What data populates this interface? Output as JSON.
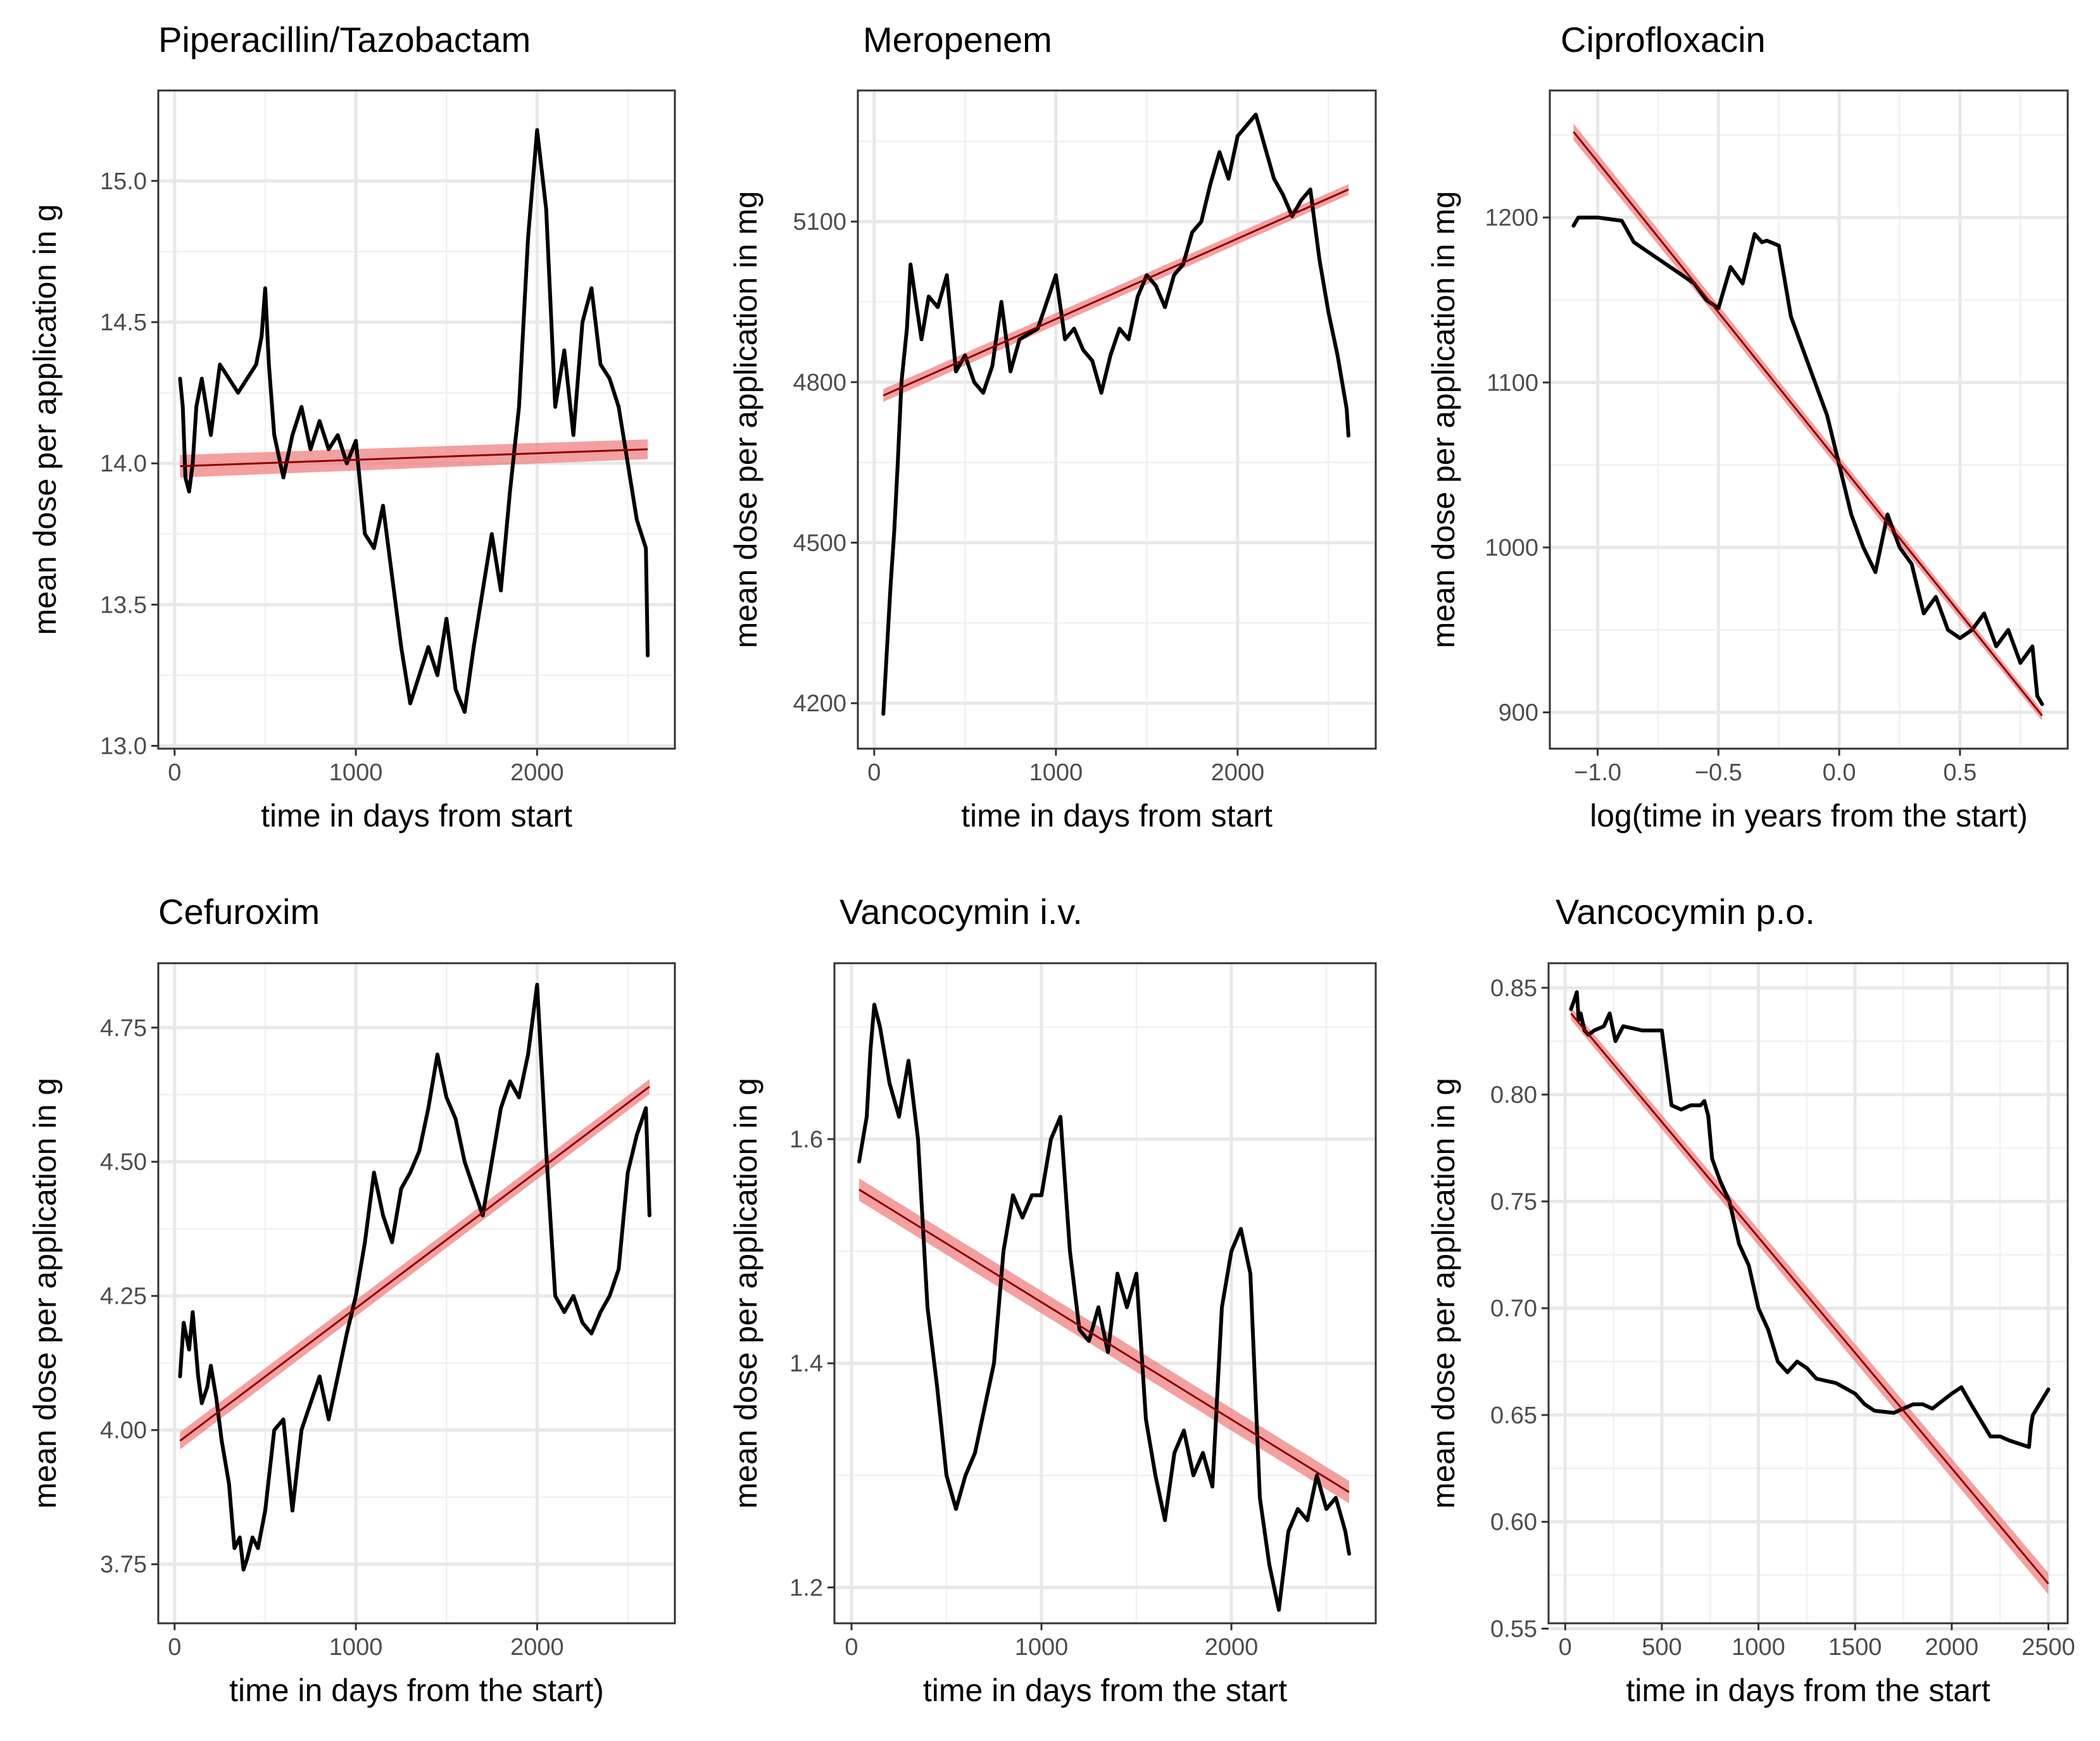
{
  "figure": {
    "background": "#ffffff",
    "colors": {
      "series": "#000000",
      "trend": "#8b0000",
      "band": "#f08080",
      "grid": "#ebebeb",
      "frame": "#333333"
    }
  },
  "chart_data": [
    {
      "type": "line",
      "title": "Piperacillin/Tazobactam",
      "xlabel": "time in days from start",
      "ylabel": "mean dose per application in g",
      "xlim": [
        -90,
        2760
      ],
      "ylim": [
        12.99,
        15.32
      ],
      "xticks": [
        0,
        1000,
        2000
      ],
      "xtick_labels": [
        "0",
        "1000",
        "2000"
      ],
      "xminor": [
        500,
        1500,
        2500
      ],
      "yticks": [
        13.0,
        13.5,
        14.0,
        14.5,
        15.0
      ],
      "ytick_labels": [
        "13.0",
        "13.5",
        "14.0",
        "14.5",
        "15.0"
      ],
      "yminor": [
        13.25,
        13.75,
        14.25,
        14.75
      ],
      "series": [
        {
          "name": "mean dose",
          "x": [
            30,
            45,
            60,
            80,
            100,
            120,
            150,
            200,
            250,
            300,
            350,
            400,
            450,
            480,
            500,
            520,
            550,
            600,
            650,
            700,
            750,
            800,
            850,
            900,
            950,
            1000,
            1050,
            1100,
            1150,
            1200,
            1250,
            1300,
            1350,
            1400,
            1450,
            1500,
            1550,
            1600,
            1650,
            1700,
            1750,
            1800,
            1850,
            1900,
            1950,
            2000,
            2050,
            2100,
            2150,
            2200,
            2250,
            2300,
            2350,
            2400,
            2450,
            2500,
            2550,
            2600,
            2610
          ],
          "y": [
            14.3,
            14.2,
            13.95,
            13.9,
            14.0,
            14.2,
            14.3,
            14.1,
            14.35,
            14.3,
            14.25,
            14.3,
            14.35,
            14.45,
            14.62,
            14.35,
            14.1,
            13.95,
            14.1,
            14.2,
            14.05,
            14.15,
            14.05,
            14.1,
            14.0,
            14.08,
            13.75,
            13.7,
            13.85,
            13.6,
            13.35,
            13.15,
            13.25,
            13.35,
            13.25,
            13.45,
            13.2,
            13.12,
            13.35,
            13.55,
            13.75,
            13.55,
            13.9,
            14.2,
            14.8,
            15.18,
            14.9,
            14.2,
            14.4,
            14.1,
            14.5,
            14.62,
            14.35,
            14.3,
            14.2,
            14.0,
            13.8,
            13.7,
            13.32
          ]
        }
      ],
      "trend": {
        "x": [
          30,
          2610
        ],
        "y": [
          13.99,
          14.05
        ],
        "band_halfwidth": [
          0.04,
          0.035
        ]
      }
    },
    {
      "type": "line",
      "title": "Meropenem",
      "xlabel": "time in days from start",
      "ylabel": "mean dose per application in mg",
      "xlim": [
        -90,
        2760
      ],
      "ylim": [
        4115,
        5345
      ],
      "xticks": [
        0,
        1000,
        2000
      ],
      "xtick_labels": [
        "0",
        "1000",
        "2000"
      ],
      "xminor": [
        500,
        1500,
        2500
      ],
      "yticks": [
        4200,
        4500,
        4800,
        5100
      ],
      "ytick_labels": [
        "4200",
        "4500",
        "4800",
        "5100"
      ],
      "yminor": [
        4350,
        4650,
        4950,
        5250
      ],
      "series": [
        {
          "name": "mean dose",
          "x": [
            50,
            70,
            90,
            110,
            130,
            150,
            180,
            200,
            230,
            260,
            300,
            350,
            400,
            450,
            500,
            550,
            600,
            650,
            700,
            750,
            800,
            850,
            900,
            950,
            1000,
            1050,
            1100,
            1150,
            1200,
            1250,
            1300,
            1350,
            1400,
            1450,
            1500,
            1550,
            1600,
            1650,
            1700,
            1750,
            1800,
            1850,
            1900,
            1950,
            2000,
            2050,
            2100,
            2150,
            2200,
            2250,
            2300,
            2350,
            2400,
            2450,
            2500,
            2550,
            2600,
            2610
          ],
          "y": [
            4180,
            4300,
            4420,
            4520,
            4650,
            4800,
            4900,
            5020,
            4950,
            4880,
            4960,
            4940,
            5000,
            4820,
            4850,
            4800,
            4780,
            4830,
            4950,
            4820,
            4880,
            4890,
            4900,
            4950,
            5000,
            4880,
            4900,
            4860,
            4840,
            4780,
            4850,
            4900,
            4880,
            4960,
            5000,
            4980,
            4940,
            5000,
            5020,
            5080,
            5100,
            5170,
            5230,
            5180,
            5260,
            5280,
            5300,
            5240,
            5180,
            5150,
            5110,
            5140,
            5160,
            5030,
            4930,
            4850,
            4750,
            4700
          ]
        }
      ],
      "trend": {
        "x": [
          50,
          2610
        ],
        "y": [
          4775,
          5160
        ],
        "band_halfwidth": [
          12,
          10
        ]
      }
    },
    {
      "type": "line",
      "title": "Ciprofloxacin",
      "xlabel": "log(time in years from the start)",
      "ylabel": "mean dose per application in mg",
      "xlim": [
        -1.198,
        0.946
      ],
      "ylim": [
        878,
        1277
      ],
      "xticks": [
        -1.0,
        -0.5,
        0.0,
        0.5
      ],
      "xtick_labels": [
        "−1.0",
        "−0.5",
        "0.0",
        "0.5"
      ],
      "xminor": [
        -0.75,
        -0.25,
        0.25,
        0.75
      ],
      "yticks": [
        900,
        1000,
        1100,
        1200
      ],
      "ytick_labels": [
        "900",
        "1000",
        "1100",
        "1200"
      ],
      "yminor": [
        950,
        1050,
        1150,
        1250
      ],
      "series": [
        {
          "name": "mean dose",
          "x": [
            -1.1,
            -1.08,
            -1.0,
            -0.9,
            -0.85,
            -0.8,
            -0.7,
            -0.6,
            -0.55,
            -0.5,
            -0.45,
            -0.4,
            -0.35,
            -0.32,
            -0.3,
            -0.25,
            -0.2,
            -0.15,
            -0.1,
            -0.05,
            0.0,
            0.05,
            0.1,
            0.15,
            0.2,
            0.25,
            0.3,
            0.35,
            0.4,
            0.45,
            0.5,
            0.55,
            0.6,
            0.65,
            0.7,
            0.75,
            0.8,
            0.82,
            0.84
          ],
          "y": [
            1195,
            1200,
            1200,
            1198,
            1185,
            1180,
            1170,
            1160,
            1150,
            1145,
            1170,
            1160,
            1190,
            1185,
            1186,
            1183,
            1140,
            1120,
            1100,
            1080,
            1050,
            1020,
            1000,
            985,
            1020,
            1000,
            990,
            960,
            970,
            950,
            945,
            950,
            960,
            940,
            950,
            930,
            940,
            910,
            905
          ]
        }
      ],
      "trend": {
        "x": [
          -1.1,
          0.84
        ],
        "y": [
          1252,
          898
        ],
        "band_halfwidth": [
          5,
          3
        ]
      }
    },
    {
      "type": "line",
      "title": "Cefuroxim",
      "xlabel": "time in days from the start)",
      "ylabel": "mean dose per application in g",
      "xlim": [
        -90,
        2760
      ],
      "ylim": [
        3.64,
        4.87
      ],
      "xticks": [
        0,
        1000,
        2000
      ],
      "xtick_labels": [
        "0",
        "1000",
        "2000"
      ],
      "xminor": [
        500,
        1500,
        2500
      ],
      "yticks": [
        3.75,
        4.0,
        4.25,
        4.5,
        4.75
      ],
      "ytick_labels": [
        "3.75",
        "4.00",
        "4.25",
        "4.50",
        "4.75"
      ],
      "yminor": [
        3.875,
        4.125,
        4.375,
        4.625
      ],
      "series": [
        {
          "name": "mean dose",
          "x": [
            30,
            50,
            80,
            100,
            130,
            150,
            180,
            200,
            230,
            260,
            300,
            330,
            360,
            380,
            400,
            430,
            460,
            500,
            550,
            600,
            650,
            700,
            750,
            800,
            850,
            900,
            950,
            1000,
            1050,
            1100,
            1150,
            1200,
            1250,
            1300,
            1350,
            1400,
            1450,
            1500,
            1550,
            1600,
            1650,
            1700,
            1750,
            1800,
            1850,
            1900,
            1950,
            2000,
            2050,
            2100,
            2150,
            2200,
            2250,
            2300,
            2350,
            2400,
            2450,
            2500,
            2550,
            2600,
            2620
          ],
          "y": [
            4.1,
            4.2,
            4.15,
            4.22,
            4.1,
            4.05,
            4.08,
            4.12,
            4.06,
            3.98,
            3.9,
            3.78,
            3.8,
            3.74,
            3.76,
            3.8,
            3.78,
            3.85,
            4.0,
            4.02,
            3.85,
            4.0,
            4.05,
            4.1,
            4.02,
            4.1,
            4.18,
            4.25,
            4.35,
            4.48,
            4.4,
            4.35,
            4.45,
            4.48,
            4.52,
            4.6,
            4.7,
            4.62,
            4.58,
            4.5,
            4.45,
            4.4,
            4.5,
            4.6,
            4.65,
            4.62,
            4.7,
            4.83,
            4.52,
            4.25,
            4.22,
            4.25,
            4.2,
            4.18,
            4.22,
            4.25,
            4.3,
            4.48,
            4.55,
            4.6,
            4.4
          ]
        }
      ],
      "trend": {
        "x": [
          30,
          2620
        ],
        "y": [
          3.98,
          4.64
        ],
        "band_halfwidth": [
          0.016,
          0.014
        ]
      }
    },
    {
      "type": "line",
      "title": "Vancocymin i.v.",
      "xlabel": "time in days from the start",
      "ylabel": "mean dose per application in g",
      "xlim": [
        -90,
        2760
      ],
      "ylim": [
        1.168,
        1.757
      ],
      "xticks": [
        0,
        1000,
        2000
      ],
      "xtick_labels": [
        "0",
        "1000",
        "2000"
      ],
      "xminor": [
        500,
        1500,
        2500
      ],
      "yticks": [
        1.2,
        1.4,
        1.6
      ],
      "ytick_labels": [
        "1.2",
        "1.4",
        "1.6"
      ],
      "yminor": [
        1.3,
        1.5,
        1.7
      ],
      "series": [
        {
          "name": "mean dose",
          "x": [
            40,
            60,
            80,
            100,
            120,
            150,
            200,
            250,
            300,
            350,
            400,
            450,
            500,
            550,
            600,
            650,
            700,
            750,
            800,
            850,
            900,
            950,
            1000,
            1050,
            1100,
            1150,
            1200,
            1250,
            1300,
            1350,
            1400,
            1450,
            1500,
            1550,
            1600,
            1650,
            1700,
            1750,
            1800,
            1850,
            1900,
            1950,
            2000,
            2050,
            2100,
            2150,
            2200,
            2250,
            2300,
            2350,
            2400,
            2450,
            2500,
            2550,
            2600,
            2620
          ],
          "y": [
            1.58,
            1.6,
            1.62,
            1.68,
            1.72,
            1.7,
            1.65,
            1.62,
            1.67,
            1.6,
            1.45,
            1.38,
            1.3,
            1.27,
            1.3,
            1.32,
            1.36,
            1.4,
            1.5,
            1.55,
            1.53,
            1.55,
            1.55,
            1.6,
            1.62,
            1.5,
            1.43,
            1.42,
            1.45,
            1.41,
            1.48,
            1.45,
            1.48,
            1.35,
            1.3,
            1.26,
            1.32,
            1.34,
            1.3,
            1.32,
            1.29,
            1.45,
            1.5,
            1.52,
            1.48,
            1.28,
            1.22,
            1.18,
            1.25,
            1.27,
            1.26,
            1.3,
            1.27,
            1.28,
            1.25,
            1.23
          ]
        }
      ],
      "trend": {
        "x": [
          40,
          2620
        ],
        "y": [
          1.555,
          1.285
        ],
        "band_halfwidth": [
          0.01,
          0.01
        ]
      }
    },
    {
      "type": "line",
      "title": "Vancocymin p.o.",
      "xlabel": "time in days from the start",
      "ylabel": "mean dose per application in g",
      "xlim": [
        -86,
        2600
      ],
      "ylim": [
        0.5525,
        0.8615
      ],
      "xticks": [
        0,
        500,
        1000,
        1500,
        2000,
        2500
      ],
      "xtick_labels": [
        "0",
        "500",
        "1000",
        "1500",
        "2000",
        "2500"
      ],
      "xminor": [
        250,
        750,
        1250,
        1750,
        2250
      ],
      "yticks": [
        0.55,
        0.6,
        0.65,
        0.7,
        0.75,
        0.8,
        0.85
      ],
      "ytick_labels": [
        "0.55",
        "0.60",
        "0.65",
        "0.70",
        "0.75",
        "0.80",
        "0.85"
      ],
      "yminor": [
        0.575,
        0.625,
        0.675,
        0.725,
        0.775,
        0.825
      ],
      "series": [
        {
          "name": "mean dose",
          "x": [
            30,
            50,
            60,
            70,
            80,
            100,
            120,
            150,
            200,
            230,
            260,
            300,
            400,
            450,
            500,
            550,
            600,
            650,
            700,
            720,
            740,
            760,
            800,
            850,
            900,
            950,
            1000,
            1050,
            1100,
            1150,
            1200,
            1250,
            1300,
            1400,
            1500,
            1550,
            1600,
            1700,
            1800,
            1850,
            1900,
            2000,
            2050,
            2100,
            2200,
            2250,
            2300,
            2400,
            2410,
            2420,
            2500
          ],
          "y": [
            0.84,
            0.845,
            0.848,
            0.835,
            0.838,
            0.83,
            0.828,
            0.83,
            0.832,
            0.838,
            0.825,
            0.832,
            0.83,
            0.83,
            0.83,
            0.795,
            0.793,
            0.795,
            0.795,
            0.797,
            0.79,
            0.77,
            0.76,
            0.75,
            0.73,
            0.72,
            0.7,
            0.69,
            0.675,
            0.67,
            0.675,
            0.672,
            0.667,
            0.665,
            0.66,
            0.655,
            0.652,
            0.651,
            0.655,
            0.655,
            0.653,
            0.66,
            0.663,
            0.655,
            0.64,
            0.64,
            0.638,
            0.635,
            0.645,
            0.65,
            0.662
          ]
        }
      ],
      "trend": {
        "x": [
          30,
          2500
        ],
        "y": [
          0.838,
          0.571
        ],
        "band_halfwidth": [
          0.003,
          0.005
        ]
      }
    }
  ]
}
